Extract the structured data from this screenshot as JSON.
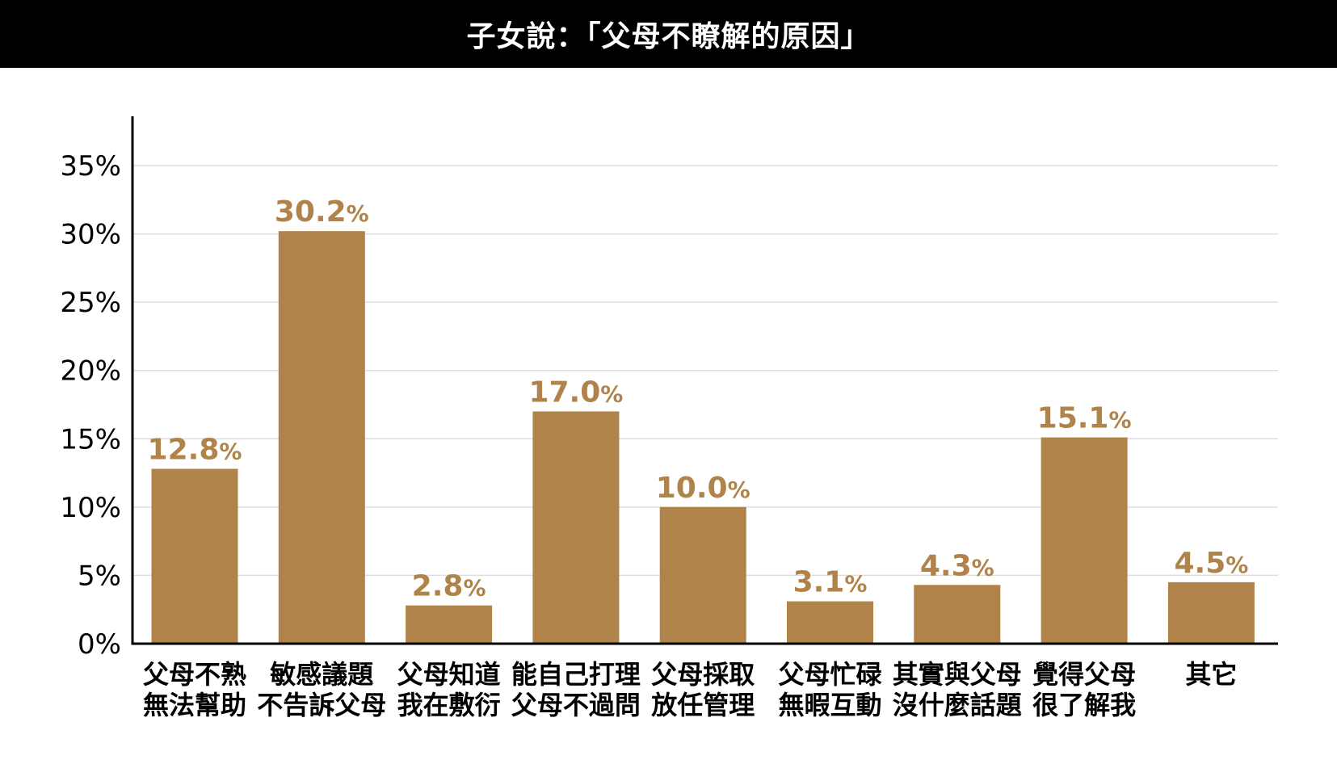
{
  "title": "子女說：「父母不瞭解的原因」",
  "colors": {
    "bar": "#b0834a",
    "value_label": "#b0834a",
    "title_bg": "#000000",
    "title_text": "#ffffff",
    "grid": "#dddddd",
    "axis": "#000000"
  },
  "chart_data": {
    "type": "bar",
    "title": "子女說：「父母不瞭解的原因」",
    "xlabel": "",
    "ylabel": "",
    "ylim": [
      0,
      35
    ],
    "y_ticks": [
      "0%",
      "5%",
      "10%",
      "15%",
      "20%",
      "25%",
      "30%",
      "35%"
    ],
    "grid": true,
    "categories": [
      [
        "父母不熟",
        "無法幫助"
      ],
      [
        "敏感議題",
        "不告訴父母"
      ],
      [
        "父母知道",
        "我在敷衍"
      ],
      [
        "能自己打理",
        "父母不過問"
      ],
      [
        "父母採取",
        "放任管理"
      ],
      [
        "父母忙碌",
        "無暇互動"
      ],
      [
        "其實與父母",
        "沒什麼話題"
      ],
      [
        "覺得父母",
        "很了解我"
      ],
      [
        "其它"
      ]
    ],
    "values": [
      12.8,
      30.2,
      2.8,
      17.0,
      10.0,
      3.1,
      4.3,
      15.1,
      4.5
    ],
    "value_labels": [
      "12.8",
      "30.2",
      "2.8",
      "17.0",
      "10.0",
      "3.1",
      "4.3",
      "15.1",
      "4.5"
    ],
    "value_suffix": "%"
  }
}
